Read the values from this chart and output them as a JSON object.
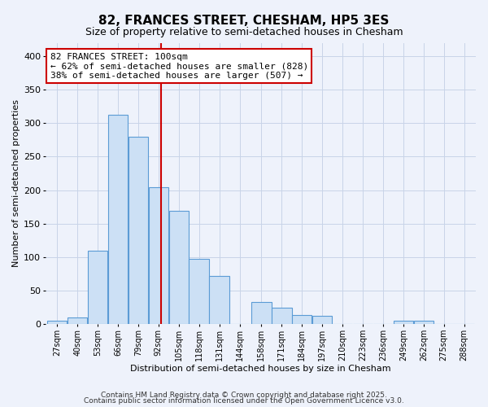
{
  "title": "82, FRANCES STREET, CHESHAM, HP5 3ES",
  "subtitle": "Size of property relative to semi-detached houses in Chesham",
  "xlabel": "Distribution of semi-detached houses by size in Chesham",
  "ylabel": "Number of semi-detached properties",
  "bin_labels": [
    "27sqm",
    "40sqm",
    "53sqm",
    "66sqm",
    "79sqm",
    "92sqm",
    "105sqm",
    "118sqm",
    "131sqm",
    "144sqm",
    "158sqm",
    "171sqm",
    "184sqm",
    "197sqm",
    "210sqm",
    "223sqm",
    "236sqm",
    "249sqm",
    "262sqm",
    "275sqm",
    "288sqm"
  ],
  "bin_lefts": [
    27,
    40,
    53,
    66,
    79,
    92,
    105,
    118,
    131,
    144,
    158,
    171,
    184,
    197,
    210,
    223,
    236,
    249,
    262,
    275,
    288
  ],
  "bar_heights": [
    5,
    10,
    110,
    313,
    280,
    204,
    169,
    97,
    72,
    0,
    33,
    25,
    14,
    13,
    0,
    0,
    0,
    5,
    5,
    0,
    0
  ],
  "bar_face_color": "#cce0f5",
  "bar_edge_color": "#5b9bd5",
  "property_size": 100,
  "vline_color": "#cc0000",
  "annotation_title": "82 FRANCES STREET: 100sqm",
  "annotation_line1": "← 62% of semi-detached houses are smaller (828)",
  "annotation_line2": "38% of semi-detached houses are larger (507) →",
  "annotation_box_facecolor": "#ffffff",
  "annotation_box_edgecolor": "#cc0000",
  "ylim": [
    0,
    420
  ],
  "yticks": [
    0,
    50,
    100,
    150,
    200,
    250,
    300,
    350,
    400
  ],
  "grid_color": "#c8d4e8",
  "background_color": "#eef2fb",
  "footer1": "Contains HM Land Registry data © Crown copyright and database right 2025.",
  "footer2": "Contains public sector information licensed under the Open Government Licence v3.0.",
  "title_fontsize": 11,
  "subtitle_fontsize": 9,
  "xlabel_fontsize": 8,
  "ylabel_fontsize": 8,
  "tick_fontsize": 7,
  "footer_fontsize": 6.5,
  "annotation_fontsize": 8
}
